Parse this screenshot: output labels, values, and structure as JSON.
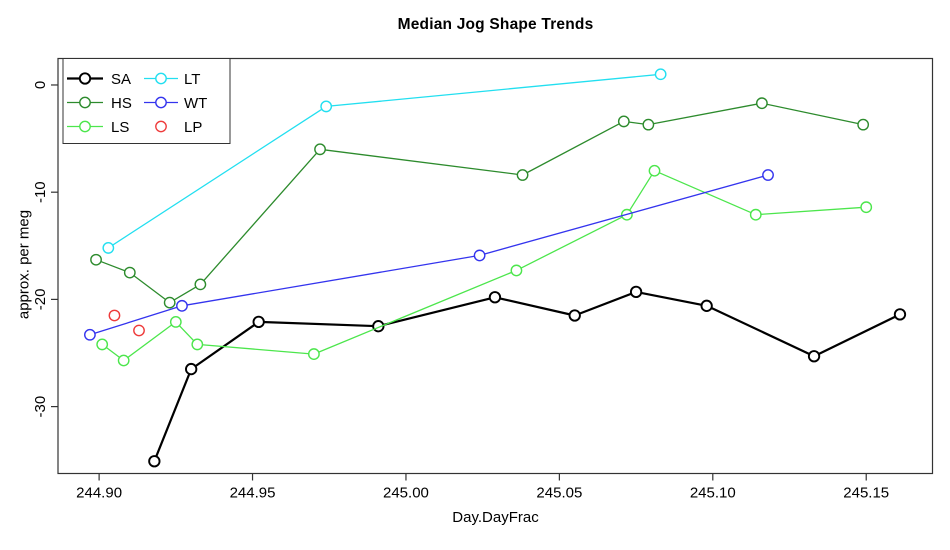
{
  "chart_data": {
    "type": "line",
    "title": "Median Jog Shape Trends",
    "xlabel": "Day.DayFrac",
    "ylabel": "approx. per meg",
    "xlim": [
      244.8866,
      245.1716
    ],
    "ylim": [
      -36.24,
      2.47
    ],
    "grid": false,
    "legend_position": "topleft",
    "x_ticks": {
      "values": [
        244.9,
        244.95,
        245.0,
        245.05,
        245.1,
        245.15
      ],
      "labels": [
        "244.90",
        "244.95",
        "245.00",
        "245.05",
        "245.10",
        "245.15"
      ]
    },
    "y_ticks": {
      "values": [
        0,
        -10,
        -20,
        -30
      ],
      "labels": [
        "0",
        "-10",
        "-20",
        "-30"
      ]
    },
    "legend_columns": [
      [
        "SA",
        "HS",
        "LS"
      ],
      [
        "LT",
        "WT",
        "LP"
      ]
    ],
    "series": [
      {
        "name": "SA",
        "color": "#000000",
        "line": true,
        "line_width": 2.2,
        "marker": "circle",
        "points": [
          [
            244.918,
            -35.1
          ],
          [
            244.93,
            -26.5
          ],
          [
            244.952,
            -22.1
          ],
          [
            244.991,
            -22.5
          ],
          [
            245.029,
            -19.8
          ],
          [
            245.055,
            -21.5
          ],
          [
            245.075,
            -19.3
          ],
          [
            245.098,
            -20.6
          ],
          [
            245.133,
            -25.3
          ],
          [
            245.161,
            -21.4
          ]
        ]
      },
      {
        "name": "HS",
        "color": "#2d8b2d",
        "line": true,
        "line_width": 1.3,
        "marker": "circle",
        "points": [
          [
            244.899,
            -16.3
          ],
          [
            244.91,
            -17.5
          ],
          [
            244.923,
            -20.3
          ],
          [
            244.933,
            -18.6
          ],
          [
            244.972,
            -6.0
          ],
          [
            245.038,
            -8.4
          ],
          [
            245.071,
            -3.4
          ],
          [
            245.079,
            -3.7
          ],
          [
            245.116,
            -1.7
          ],
          [
            245.149,
            -3.7
          ]
        ]
      },
      {
        "name": "LS",
        "color": "#4ce64c",
        "line": true,
        "line_width": 1.3,
        "marker": "circle",
        "points": [
          [
            244.901,
            -24.2
          ],
          [
            244.908,
            -25.7
          ],
          [
            244.925,
            -22.1
          ],
          [
            244.932,
            -24.2
          ],
          [
            244.97,
            -25.1
          ],
          [
            245.036,
            -17.3
          ],
          [
            245.072,
            -12.1
          ],
          [
            245.081,
            -8.0
          ],
          [
            245.114,
            -12.1
          ],
          [
            245.15,
            -11.4
          ]
        ]
      },
      {
        "name": "LT",
        "color": "#22dff0",
        "line": true,
        "line_width": 1.3,
        "marker": "circle",
        "points": [
          [
            244.903,
            -15.2
          ],
          [
            244.974,
            -2.0
          ],
          [
            245.083,
            1.0
          ]
        ]
      },
      {
        "name": "WT",
        "color": "#3434ee",
        "line": true,
        "line_width": 1.3,
        "marker": "circle",
        "points": [
          [
            244.897,
            -23.3
          ],
          [
            244.927,
            -20.6
          ],
          [
            245.024,
            -15.9
          ],
          [
            245.118,
            -8.4
          ]
        ]
      },
      {
        "name": "LP",
        "color": "#ee3b3b",
        "line": false,
        "line_width": 1.3,
        "marker": "circle",
        "points": [
          [
            244.905,
            -21.5
          ],
          [
            244.913,
            -22.9
          ]
        ]
      }
    ]
  }
}
